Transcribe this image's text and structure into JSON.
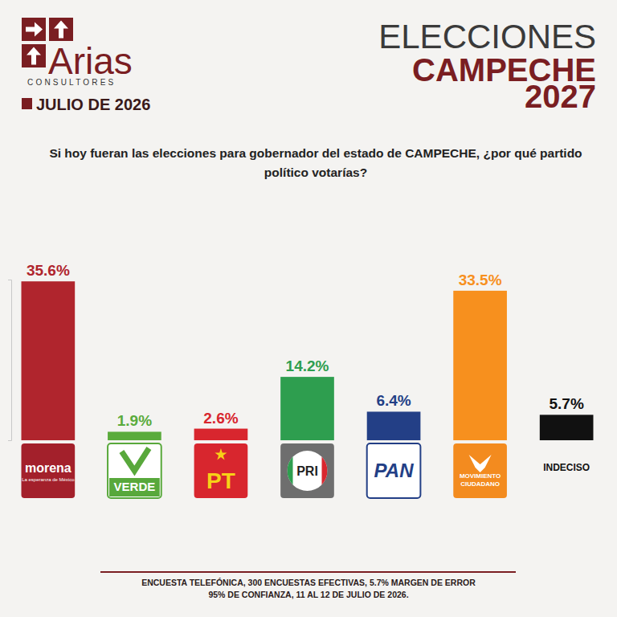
{
  "chart_data": {
    "type": "bar",
    "title": "ELECCIONES CAMPECHE 2027",
    "subtitle": "Si hoy fueran las elecciones para gobernador del estado de CAMPECHE, ¿por qué partido político votarías?",
    "categories": [
      "morena",
      "VERDE",
      "PT",
      "PRI",
      "PAN",
      "MOVIMIENTO CIUDADANO",
      "INDECISO"
    ],
    "values": [
      35.6,
      1.9,
      2.6,
      14.2,
      6.4,
      33.5,
      5.7
    ],
    "value_labels": [
      "35.6%",
      "1.9%",
      "2.6%",
      "14.2%",
      "6.4%",
      "33.5%",
      "5.7%"
    ],
    "colors": [
      "#b0252d",
      "#5aab3c",
      "#d8262e",
      "#2e9e4f",
      "#233f86",
      "#f7901e",
      "#111111"
    ],
    "ylim": [
      0,
      36
    ],
    "yticks": [
      0,
      36
    ],
    "tick_labels": false,
    "data_labels": true,
    "grid": false,
    "annotations": [
      "Arias",
      "CONSULTORES",
      "JULIO DE 2026",
      "La esperanza de México",
      "ENCUESTA TELEFÓNICA, 300 ENCUESTAS EFECTIVAS, 5.7% MARGEN DE ERROR",
      "95% DE CONFIANZA, 11 AL 12 DE JULIO DE 2026."
    ]
  }
}
